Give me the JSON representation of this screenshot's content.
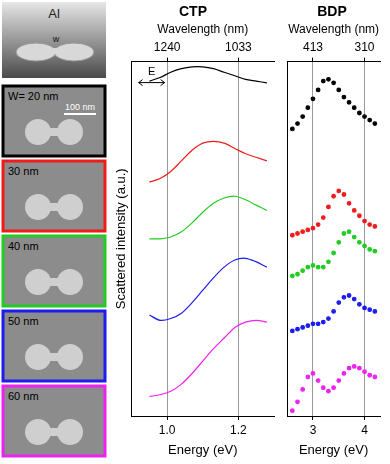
{
  "images": {
    "material": "Al",
    "width_symbol": "w",
    "scale_bar": "100 nm"
  },
  "chart_data": [
    {
      "type": "line",
      "title": "CTP",
      "x_label": "Energy (eV)",
      "x2_label": "Wavelength (nm)",
      "y_label": "Scattered intensity (a.u.)",
      "xlim": [
        0.9,
        1.3
      ],
      "xticks": [
        {
          "value": 1.0,
          "label": "1.0"
        },
        {
          "value": 1.2,
          "label": "1.2"
        }
      ],
      "x2lim": [
        0.9,
        1.3
      ],
      "x2ticks": [
        {
          "value": 1.0,
          "label": "1240"
        },
        {
          "value": 1.2,
          "label": "1033"
        }
      ],
      "ylim": [
        0,
        10
      ],
      "tick_labels": "x",
      "grid": "x",
      "annotations": [
        "E"
      ],
      "marker": "none",
      "line_style": "solid",
      "x": [
        0.95,
        0.98,
        1.01,
        1.04,
        1.07,
        1.1,
        1.13,
        1.16,
        1.19,
        1.22,
        1.25,
        1.28
      ],
      "series": [
        {
          "name": "W= 20 nm",
          "color": "#000000",
          "values": [
            9.45,
            9.55,
            9.7,
            9.8,
            9.85,
            9.85,
            9.8,
            9.7,
            9.6,
            9.5,
            9.45,
            9.4
          ]
        },
        {
          "name": "30 nm",
          "color": "#ee1c1c",
          "values": [
            6.6,
            6.7,
            6.9,
            7.2,
            7.5,
            7.7,
            7.75,
            7.7,
            7.55,
            7.4,
            7.3,
            7.2
          ]
        },
        {
          "name": "40 nm",
          "color": "#22cc22",
          "values": [
            5.0,
            5.0,
            5.05,
            5.2,
            5.45,
            5.75,
            6.0,
            6.15,
            6.2,
            6.1,
            5.95,
            5.8
          ]
        },
        {
          "name": "50 nm",
          "color": "#1c1cee",
          "values": [
            2.85,
            2.7,
            2.75,
            2.9,
            3.2,
            3.55,
            3.9,
            4.2,
            4.4,
            4.45,
            4.35,
            4.2
          ]
        },
        {
          "name": "60 nm",
          "color": "#ee22ee",
          "values": [
            0.55,
            0.6,
            0.7,
            0.9,
            1.2,
            1.55,
            1.9,
            2.2,
            2.5,
            2.65,
            2.7,
            2.65
          ]
        }
      ]
    },
    {
      "type": "scatter",
      "title": "BDP",
      "x_label": "Energy (eV)",
      "x2_label": "Wavelength (nm)",
      "xlim": [
        2.5,
        4.3
      ],
      "xticks": [
        3,
        4
      ],
      "x2lim": [
        2.5,
        4.3
      ],
      "x2ticks": [
        {
          "value": 3,
          "label": "413"
        },
        {
          "value": 4,
          "label": "310"
        }
      ],
      "ylim": [
        0,
        10
      ],
      "tick_labels": "x",
      "grid": "x",
      "marker": "circle",
      "line_style": "none",
      "x": [
        2.6,
        2.7,
        2.8,
        2.9,
        3.0,
        3.1,
        3.2,
        3.3,
        3.4,
        3.5,
        3.6,
        3.7,
        3.8,
        3.9,
        4.0,
        4.1,
        4.2
      ],
      "series": [
        {
          "name": "W= 20 nm",
          "color": "#000000",
          "values": [
            8.1,
            8.25,
            8.45,
            8.7,
            8.95,
            9.2,
            9.45,
            9.5,
            9.4,
            9.2,
            9.0,
            8.85,
            8.7,
            8.55,
            8.45,
            8.35,
            8.25
          ]
        },
        {
          "name": "30 nm",
          "color": "#ee1c1c",
          "values": [
            5.1,
            5.15,
            5.2,
            5.25,
            5.3,
            5.4,
            5.6,
            5.9,
            6.2,
            6.35,
            6.25,
            6.0,
            5.8,
            5.65,
            5.5,
            5.4,
            5.35
          ]
        },
        {
          "name": "40 nm",
          "color": "#22cc22",
          "values": [
            3.95,
            4.0,
            4.1,
            4.2,
            4.25,
            4.2,
            4.2,
            4.35,
            4.6,
            4.9,
            5.15,
            5.2,
            5.05,
            4.9,
            4.8,
            4.7,
            4.65
          ]
        },
        {
          "name": "50 nm",
          "color": "#1c1cee",
          "values": [
            2.4,
            2.45,
            2.5,
            2.55,
            2.6,
            2.6,
            2.65,
            2.75,
            2.95,
            3.2,
            3.35,
            3.4,
            3.3,
            3.15,
            3.05,
            3.0,
            2.95
          ]
        },
        {
          "name": "60 nm",
          "color": "#ee22ee",
          "values": [
            0.15,
            0.4,
            0.75,
            1.1,
            1.2,
            1.0,
            0.8,
            0.7,
            0.8,
            1.0,
            1.2,
            1.35,
            1.4,
            1.35,
            1.25,
            1.15,
            1.1
          ]
        }
      ]
    }
  ]
}
